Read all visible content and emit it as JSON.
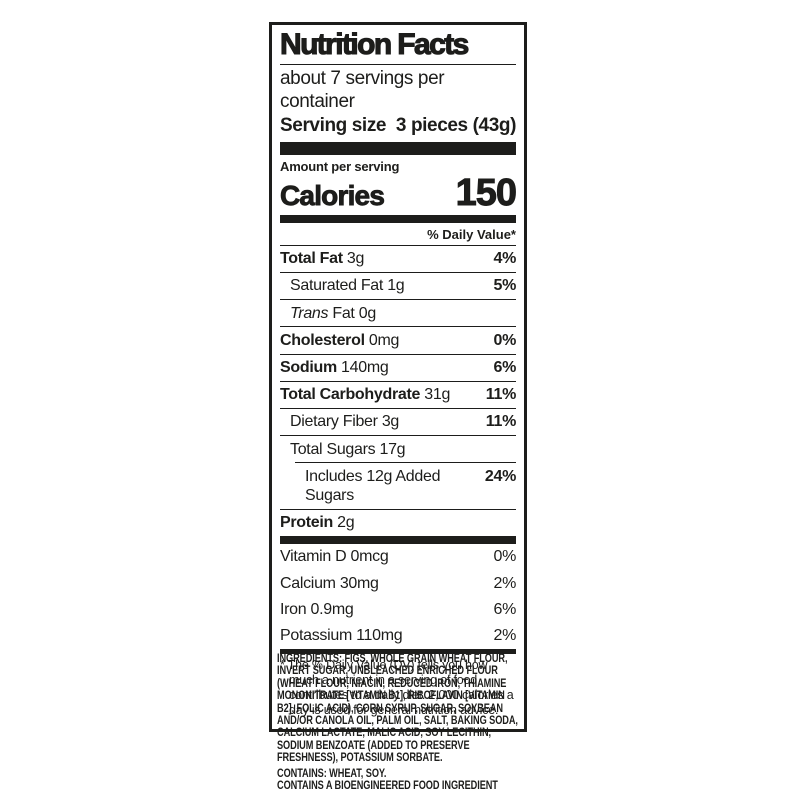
{
  "colors": {
    "ink": "#1d1d1b",
    "background": "#ffffff"
  },
  "label": {
    "title": "Nutrition Facts",
    "servings_per_container": "about 7 servings per container",
    "serving_size_label": "Serving size",
    "serving_size_value": "3 pieces (43g)",
    "amount_per_serving": "Amount per serving",
    "calories_label": "Calories",
    "calories_value": "150",
    "daily_value_header": "% Daily Value*",
    "rows": [
      {
        "bold": "Total Fat",
        "rest": " 3g",
        "dv": "4%"
      },
      {
        "plain": "Saturated Fat 1g",
        "dv": "5%"
      },
      {
        "italic": "Trans",
        "rest": " Fat 0g",
        "dv": ""
      },
      {
        "bold": "Cholesterol",
        "rest": " 0mg",
        "dv": "0%"
      },
      {
        "bold": "Sodium",
        "rest": " 140mg",
        "dv": "6%"
      },
      {
        "bold": "Total Carbohydrate",
        "rest": " 31g",
        "dv": "11%"
      },
      {
        "plain": "Dietary Fiber 3g",
        "dv": "11%"
      },
      {
        "plain": "Total Sugars 17g",
        "dv": ""
      },
      {
        "plain": "Includes 12g Added Sugars",
        "dv": "24%"
      },
      {
        "bold": "Protein",
        "rest": " 2g",
        "dv": ""
      }
    ],
    "micronutrients": [
      {
        "name": "Vitamin D 0mcg",
        "dv": "0%"
      },
      {
        "name": "Calcium 30mg",
        "dv": "2%"
      },
      {
        "name": "Iron 0.9mg",
        "dv": "6%"
      },
      {
        "name": "Potassium 110mg",
        "dv": "2%"
      }
    ],
    "footnote": "* The % Daily Value (DV) tells you how much a nutrient in a serving of food contributes to a daily diet. 2,000 calories a day is used for general nutrition advice."
  },
  "ingredients": {
    "statement": "INGREDIENTS: FIGS, WHOLE GRAIN WHEAT FLOUR, INVERT SUGAR, UNBLEACHED ENRICHED FLOUR (WHEAT FLOUR, NIACIN, REDUCED IRON, THIAMINE MONONITRATE [VITAMIN B1], RIBOFLAVIN [VITAMIN B2], FOLIC ACID), CORN SYRUP, SUGAR, SOYBEAN AND/OR CANOLA OIL, PALM OIL, SALT, BAKING SODA, CALCIUM LACTATE, MALIC ACID, SOY LECITHIN, SODIUM BENZOATE (ADDED TO PRESERVE FRESHNESS), POTASSIUM SORBATE.",
    "contains": "CONTAINS: WHEAT, SOY.",
    "bioengineered": "CONTAINS A BIOENGINEERED FOOD INGREDIENT"
  }
}
